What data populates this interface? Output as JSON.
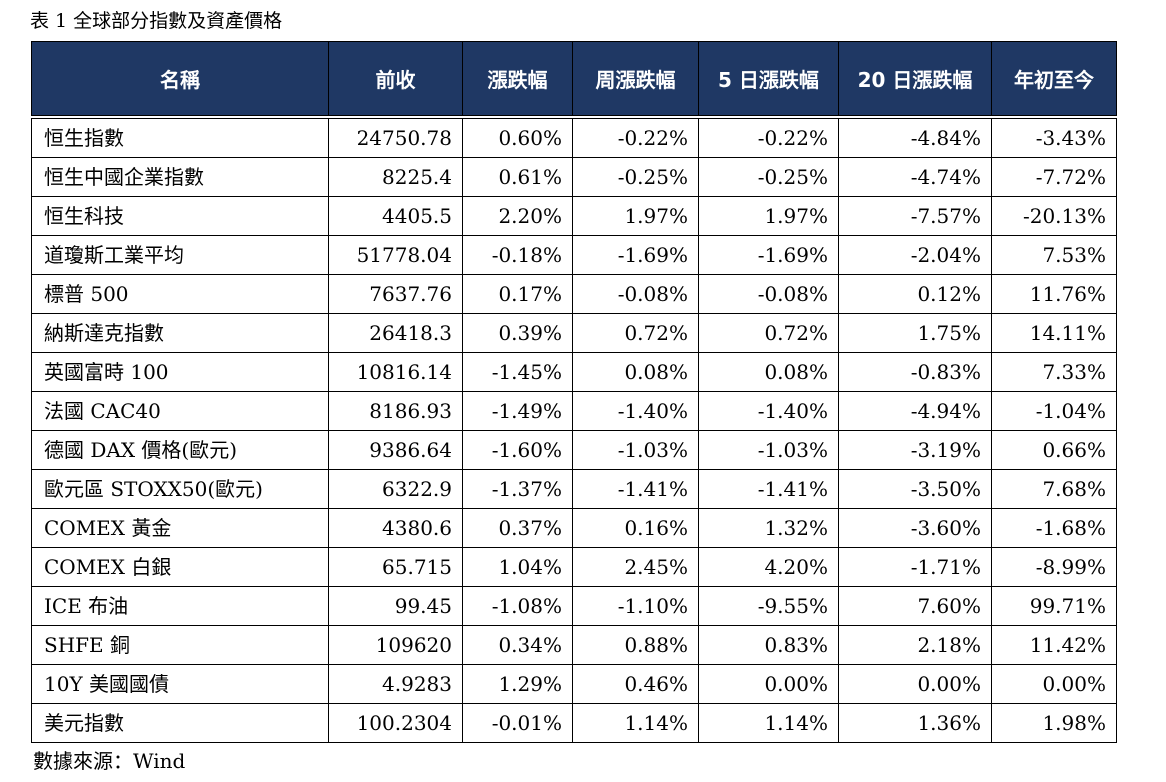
{
  "caption": "表 1 全球部分指數及資產價格",
  "header": [
    "名稱",
    "前收",
    "漲跌幅",
    "周漲跌幅",
    "5 日漲跌幅",
    "20 日漲跌幅",
    "年初至今"
  ],
  "rows": [
    [
      "恒生指數",
      "24750.78",
      "0.60%",
      "-0.22%",
      "-0.22%",
      "-4.84%",
      "-3.43%"
    ],
    [
      "恒生中國企業指數",
      "8225.4",
      "0.61%",
      "-0.25%",
      "-0.25%",
      "-4.74%",
      "-7.72%"
    ],
    [
      "恒生科技",
      "4405.5",
      "2.20%",
      "1.97%",
      "1.97%",
      "-7.57%",
      "-20.13%"
    ],
    [
      "道瓊斯工業平均",
      "51778.04",
      "-0.18%",
      "-1.69%",
      "-1.69%",
      "-2.04%",
      "7.53%"
    ],
    [
      "標普 500",
      "7637.76",
      "0.17%",
      "-0.08%",
      "-0.08%",
      "0.12%",
      "11.76%"
    ],
    [
      "納斯達克指數",
      "26418.3",
      "0.39%",
      "0.72%",
      "0.72%",
      "1.75%",
      "14.11%"
    ],
    [
      "英國富時 100",
      "10816.14",
      "-1.45%",
      "0.08%",
      "0.08%",
      "-0.83%",
      "7.33%"
    ],
    [
      "法國 CAC40",
      "8186.93",
      "-1.49%",
      "-1.40%",
      "-1.40%",
      "-4.94%",
      "-1.04%"
    ],
    [
      "德國 DAX 價格(歐元)",
      "9386.64",
      "-1.60%",
      "-1.03%",
      "-1.03%",
      "-3.19%",
      "0.66%"
    ],
    [
      "歐元區 STOXX50(歐元)",
      "6322.9",
      "-1.37%",
      "-1.41%",
      "-1.41%",
      "-3.50%",
      "7.68%"
    ],
    [
      "COMEX 黃金",
      "4380.6",
      "0.37%",
      "0.16%",
      "1.32%",
      "-3.60%",
      "-1.68%"
    ],
    [
      "COMEX 白銀",
      "65.715",
      "1.04%",
      "2.45%",
      "4.20%",
      "-1.71%",
      "-8.99%"
    ],
    [
      "ICE 布油",
      "99.45",
      "-1.08%",
      "-1.10%",
      "-9.55%",
      "7.60%",
      "99.71%"
    ],
    [
      "SHFE 銅",
      "109620",
      "0.34%",
      "0.88%",
      "0.83%",
      "2.18%",
      "11.42%"
    ],
    [
      "10Y  美國國債",
      "4.9283",
      "1.29%",
      "0.46%",
      "0.00%",
      "0.00%",
      "0.00%"
    ],
    [
      "美元指數",
      "100.2304",
      "-0.01%",
      "1.14%",
      "1.14%",
      "1.36%",
      "1.98%"
    ]
  ],
  "source": "數據來源：Wind",
  "colors": {
    "header_bg": "#1f3864",
    "header_text": "#ffffff"
  }
}
